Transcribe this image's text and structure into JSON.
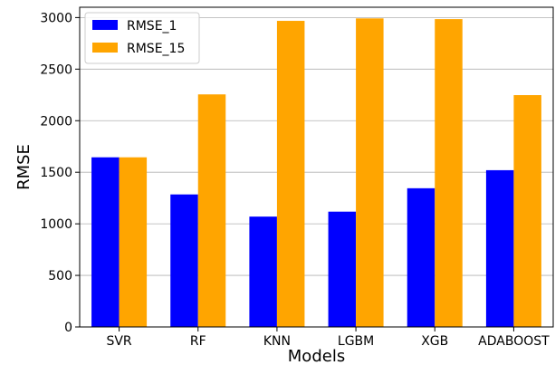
{
  "chart_data": {
    "type": "bar",
    "categories": [
      "SVR",
      "RF",
      "KNN",
      "LGBM",
      "XGB",
      "ADABOOST"
    ],
    "series": [
      {
        "name": "RMSE_1",
        "color": "#0000ff",
        "values": [
          1645,
          1285,
          1070,
          1118,
          1345,
          1520
        ]
      },
      {
        "name": "RMSE_15",
        "color": "#ffa500",
        "values": [
          1645,
          2255,
          2968,
          2992,
          2985,
          2248
        ]
      }
    ],
    "title": "",
    "xlabel": "Models",
    "ylabel": "RMSE",
    "ylim": [
      0,
      3100
    ],
    "yticks": [
      0,
      500,
      1000,
      1500,
      2000,
      2500,
      3000
    ],
    "grid": true,
    "legend": "top-left"
  }
}
